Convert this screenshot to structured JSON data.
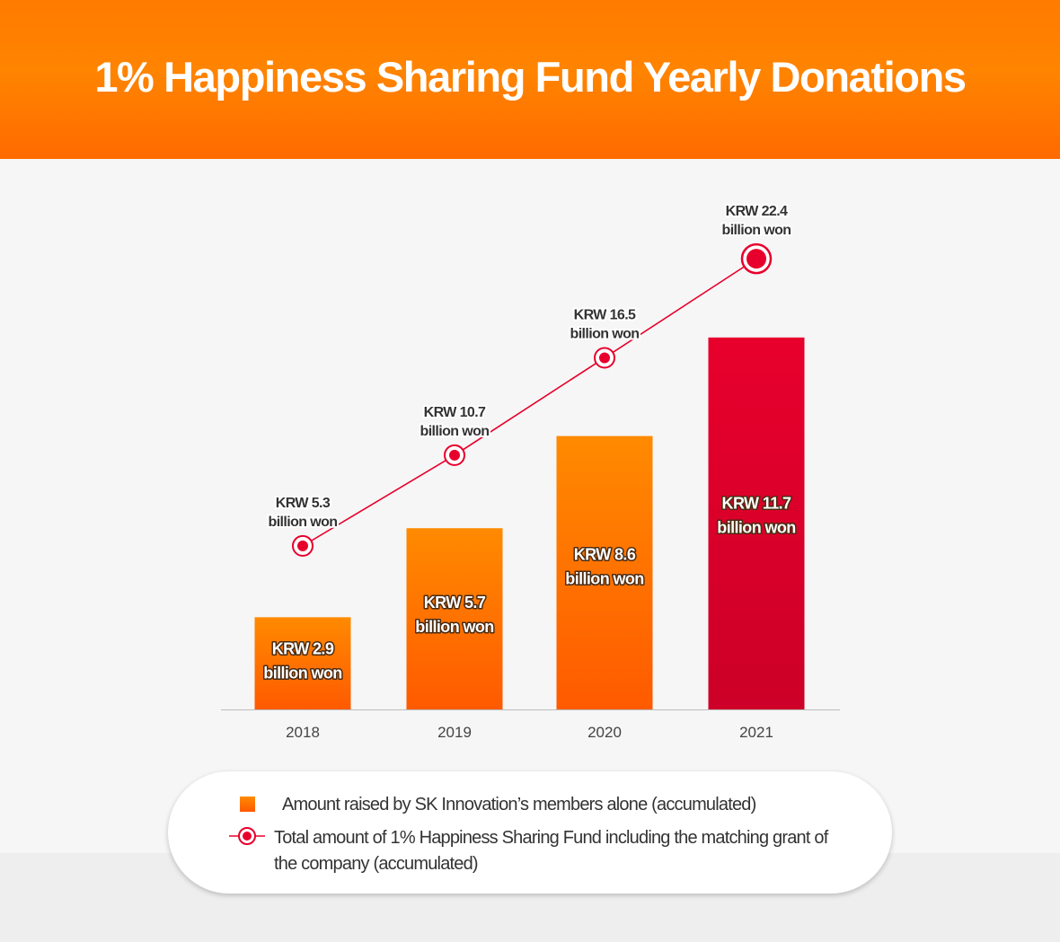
{
  "header": {
    "title": "1% Happiness Sharing Fund Yearly Donations"
  },
  "colors": {
    "header_orange": "#ff7b00",
    "bar_orange_top": "#ff8a00",
    "bar_orange_bottom": "#ff5a00",
    "bar_red_top": "#e8002c",
    "bar_red_bottom": "#cc0028",
    "line_red": "#e8002c"
  },
  "chart_data": {
    "type": "bar",
    "categories": [
      "2018",
      "2019",
      "2020",
      "2021"
    ],
    "series": [
      {
        "type": "bar",
        "values": [
          2.9,
          5.7,
          8.6,
          11.7
        ],
        "labels": [
          "KRW 2.9\nbillion won",
          "KRW 5.7\nbillion won",
          "KRW 8.6\nbillion won",
          "KRW 11.7\nbillion won"
        ]
      },
      {
        "type": "line",
        "marker": "circle",
        "values": [
          5.3,
          10.7,
          16.5,
          22.4
        ],
        "labels": [
          "KRW 5.3\nbillion won",
          "KRW 10.7\nbillion won",
          "KRW 16.5\nbillion won",
          "KRW 22.4\nbillion won"
        ]
      }
    ],
    "xlabel": "",
    "ylabel": "",
    "grid": false,
    "highlight_category": "2021",
    "legend_position": "bottom"
  },
  "legend": {
    "items": [
      {
        "label": "Amount raised by SK Innovation’s members alone (accumulated)",
        "symbol": "bar-square-icon"
      },
      {
        "label": "Total amount of 1% Happiness Sharing Fund including the matching grant of the company (accumulated)",
        "symbol": "line-circle-marker-icon"
      }
    ]
  }
}
